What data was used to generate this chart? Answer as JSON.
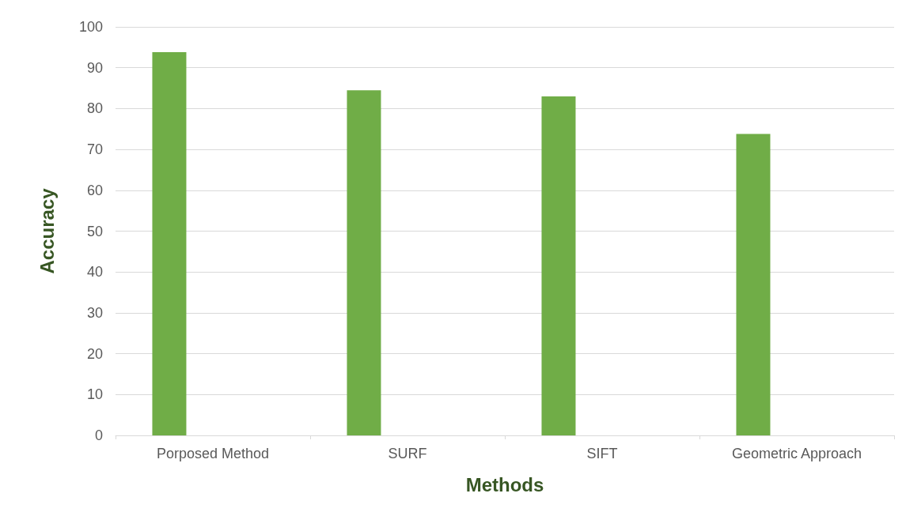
{
  "chart_data": {
    "type": "bar",
    "xlabel": "Methods",
    "ylabel": "Accuracy",
    "categories": [
      "Porposed Method",
      "SURF",
      "SIFT",
      "Geometric Approach"
    ],
    "values": [
      93.8,
      84.5,
      83.0,
      73.8
    ],
    "color": "#70ad47",
    "ylim": [
      0,
      100
    ],
    "yticks": [
      0,
      10,
      20,
      30,
      40,
      50,
      60,
      70,
      80,
      90,
      100
    ],
    "grid": "y"
  }
}
